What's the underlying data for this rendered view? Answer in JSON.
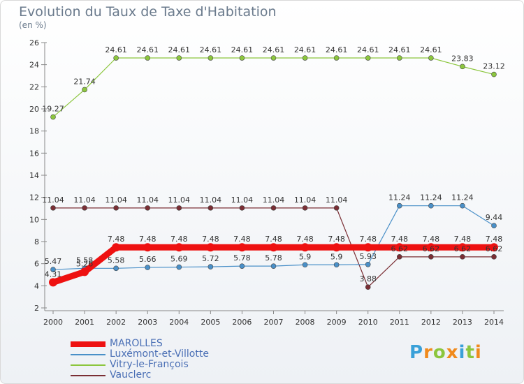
{
  "chart_data": {
    "type": "line",
    "title": "Evolution du Taux de Taxe d'Habitation",
    "subtitle": "(en %)",
    "categories": [
      "2000",
      "2001",
      "2002",
      "2003",
      "2004",
      "2005",
      "2006",
      "2007",
      "2008",
      "2009",
      "2010",
      "2011",
      "2012",
      "2013",
      "2014"
    ],
    "ylim": [
      2,
      26
    ],
    "yticks": [
      2,
      4,
      6,
      8,
      10,
      12,
      14,
      16,
      18,
      20,
      22,
      24,
      26
    ],
    "grid": false,
    "legend_position": "bottom-left",
    "series": [
      {
        "name": "Vitry-le-François",
        "color": "#8cc63e",
        "values": [
          19.27,
          21.74,
          24.61,
          24.61,
          24.61,
          24.61,
          24.61,
          24.61,
          24.61,
          24.61,
          24.61,
          24.61,
          24.61,
          23.83,
          23.12
        ],
        "labels": [
          "19.27",
          "21.74",
          "24.61",
          "24.61",
          "24.61",
          "24.61",
          "24.61",
          "24.61",
          "24.61",
          "24.61",
          "24.61",
          "24.61",
          "24.61",
          "23.83",
          "23.12"
        ]
      },
      {
        "name": "Vauclerc",
        "color": "#7a2e34",
        "values": [
          11.04,
          11.04,
          11.04,
          11.04,
          11.04,
          11.04,
          11.04,
          11.04,
          11.04,
          11.04,
          3.88,
          6.62,
          6.62,
          6.62,
          6.62
        ],
        "labels": [
          "11.04",
          "11.04",
          "11.04",
          "11.04",
          "11.04",
          "11.04",
          "11.04",
          "11.04",
          "11.04",
          "11.04",
          "3.88",
          "6.62",
          "6.62",
          "6.62",
          "6.62"
        ]
      },
      {
        "name": "Luxémont-et-Villotte",
        "color": "#4a90c8",
        "values": [
          5.47,
          5.58,
          5.58,
          5.66,
          5.69,
          5.72,
          5.78,
          5.78,
          5.9,
          5.9,
          5.93,
          11.24,
          11.24,
          11.24,
          9.44
        ],
        "labels": [
          "5.47",
          "5.58",
          "5.58",
          "5.66",
          "5.69",
          "5.72",
          "5.78",
          "5.78",
          "5.9",
          "5.9",
          "5.93",
          "11.24",
          "11.24",
          "11.24",
          "9.44"
        ]
      },
      {
        "name": "MAROLLES",
        "color": "#ee1111",
        "values": [
          4.31,
          5.26,
          7.48,
          7.48,
          7.48,
          7.48,
          7.48,
          7.48,
          7.48,
          7.48,
          7.48,
          7.48,
          7.48,
          7.48,
          7.48
        ],
        "labels": [
          "4.31",
          "5.26",
          "7.48",
          "7.48",
          "7.48",
          "7.48",
          "7.48",
          "7.48",
          "7.48",
          "7.48",
          "7.48",
          "7.48",
          "7.48",
          "7.48",
          "7.48"
        ]
      }
    ]
  },
  "legend": {
    "items": [
      {
        "label": "MAROLLES",
        "color": "#ee1111"
      },
      {
        "label": "Luxémont-et-Villotte",
        "color": "#4a90c8"
      },
      {
        "label": "Vitry-le-François",
        "color": "#8cc63e"
      },
      {
        "label": "Vauclerc",
        "color": "#7a2e34"
      }
    ]
  },
  "logo": {
    "letters": [
      "P",
      "r",
      "o",
      "x",
      "i",
      "t",
      "i"
    ],
    "colors": [
      "#3aa0d8",
      "#f08a1c",
      "#8cc63e",
      "#f08a1c",
      "#3aa0d8",
      "#8cc63e",
      "#f08a1c"
    ]
  }
}
